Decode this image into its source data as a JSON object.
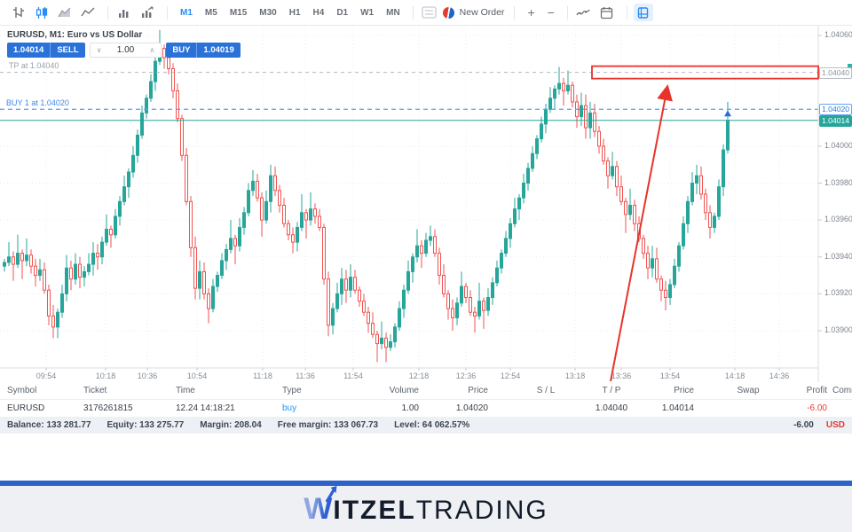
{
  "toolbar": {
    "chart_type_icons": [
      "bars-chart-icon",
      "candlestick-chart-icon",
      "area-chart-icon",
      "line-chart-icon"
    ],
    "volume_icons": [
      "volume-bars-icon",
      "tick-volume-icon"
    ],
    "timeframes": [
      "M1",
      "M5",
      "M15",
      "M30",
      "H1",
      "H4",
      "D1",
      "W1",
      "MN"
    ],
    "active_timeframe": "M1",
    "new_order_label": "New Order",
    "zoom_in": "+",
    "zoom_out": "−"
  },
  "chart": {
    "title": "EURUSD, M1: Euro vs US Dollar",
    "widget": {
      "sell_price": "1.04014",
      "sell_label": "SELL",
      "volume": "1.00",
      "buy_label": "BUY",
      "buy_price": "1.04019"
    },
    "tp_line": {
      "label": "TP at 1.04040",
      "price": 1.0404
    },
    "buy_line": {
      "label": "BUY 1 at 1.04020",
      "price": 1.0402
    },
    "current_price": 1.04014,
    "colors": {
      "bull": "#26a69a",
      "bear": "#ef5350",
      "blue_line": "#5b9cf6",
      "gray_line": "#b2b6bd",
      "annotation_red": "#e8332a",
      "buy_marker_blue": "#2f6bd8"
    }
  },
  "chart_data": {
    "type": "candlestick",
    "symbol": "EURUSD",
    "timeframe": "M1",
    "title": "EURUSD, M1: Euro vs US Dollar",
    "y_axis_ticks": [
      1.0406,
      1.04,
      1.0398,
      1.0396,
      1.0394,
      1.0392,
      1.039
    ],
    "y_range": [
      1.0388,
      1.0406
    ],
    "x_labels": [
      {
        "t": "09:54",
        "x": 52
      },
      {
        "t": "10:18",
        "x": 119
      },
      {
        "t": "10:36",
        "x": 166
      },
      {
        "t": "10:54",
        "x": 222
      },
      {
        "t": "11:18",
        "x": 296
      },
      {
        "t": "11:36",
        "x": 344
      },
      {
        "t": "11:54",
        "x": 398
      },
      {
        "t": "12:18",
        "x": 472
      },
      {
        "t": "12:36",
        "x": 525
      },
      {
        "t": "12:54",
        "x": 575
      },
      {
        "t": "13:18",
        "x": 648
      },
      {
        "t": "13:36",
        "x": 700
      },
      {
        "t": "13:54",
        "x": 755
      },
      {
        "t": "14:18",
        "x": 828
      },
      {
        "t": "14:36",
        "x": 878
      }
    ],
    "grid": true,
    "first_open": 1.03935,
    "closes": [
      1.03937,
      1.0394,
      1.03936,
      1.03942,
      1.03938,
      1.03941,
      1.03935,
      1.0393,
      1.03933,
      1.03922,
      1.03908,
      1.03902,
      1.0391,
      1.0392,
      1.03934,
      1.03928,
      1.03936,
      1.03929,
      1.03932,
      1.03936,
      1.03942,
      1.0394,
      1.03948,
      1.03955,
      1.03952,
      1.03962,
      1.0397,
      1.03978,
      1.03986,
      1.03995,
      1.04006,
      1.04018,
      1.04026,
      1.04035,
      1.04046,
      1.04053,
      1.04048,
      1.04042,
      1.0403,
      1.04015,
      1.03995,
      1.0397,
      1.03945,
      1.03923,
      1.03932,
      1.0392,
      1.03912,
      1.03924,
      1.0393,
      1.03938,
      1.03944,
      1.0395,
      1.03946,
      1.03956,
      1.03964,
      1.03976,
      1.03981,
      1.03972,
      1.0396,
      1.0397,
      1.03984,
      1.03976,
      1.03968,
      1.03958,
      1.03952,
      1.03948,
      1.03956,
      1.03964,
      1.0396,
      1.03966,
      1.03962,
      1.03956,
      1.03928,
      1.03903,
      1.03912,
      1.0392,
      1.03928,
      1.03922,
      1.03929,
      1.03922,
      1.03916,
      1.0391,
      1.03904,
      1.03898,
      1.03893,
      1.03896,
      1.03891,
      1.03894,
      1.03902,
      1.03912,
      1.03922,
      1.03932,
      1.0394,
      1.03946,
      1.03942,
      1.03949,
      1.03951,
      1.03942,
      1.0393,
      1.0392,
      1.03912,
      1.03907,
      1.03915,
      1.03924,
      1.03918,
      1.0391,
      1.03908,
      1.03916,
      1.03911,
      1.03918,
      1.03926,
      1.03934,
      1.03942,
      1.0395,
      1.03958,
      1.03966,
      1.03972,
      1.0398,
      1.03988,
      1.03996,
      1.04004,
      1.04012,
      1.0402,
      1.04026,
      1.04031,
      1.04034,
      1.0403,
      1.04033,
      1.04024,
      1.04016,
      1.04022,
      1.0401,
      1.04018,
      1.04008,
      1.04,
      1.03992,
      1.03984,
      1.03989,
      1.03978,
      1.0397,
      1.03963,
      1.03968,
      1.03958,
      1.0395,
      1.03942,
      1.03934,
      1.03939,
      1.03928,
      1.03922,
      1.03918,
      1.03925,
      1.03935,
      1.03946,
      1.03958,
      1.0397,
      1.0398,
      1.03984,
      1.03974,
      1.03964,
      1.03956,
      1.03962,
      1.03978,
      1.03998,
      1.04014
    ]
  },
  "positions_table": {
    "columns": [
      {
        "key": "symbol",
        "label": "Symbol",
        "x": 8,
        "w": 86,
        "align": "left"
      },
      {
        "key": "ticket",
        "label": "Ticket",
        "x": 94,
        "w": 100,
        "align": "left"
      },
      {
        "key": "time",
        "label": "Time",
        "x": 198,
        "w": 110,
        "align": "left"
      },
      {
        "key": "type",
        "label": "Type",
        "x": 318,
        "w": 60,
        "align": "left"
      },
      {
        "key": "volume",
        "label": "Volume",
        "x": 410,
        "w": 62,
        "align": "right"
      },
      {
        "key": "price_open",
        "label": "Price",
        "x": 490,
        "w": 60,
        "align": "right"
      },
      {
        "key": "sl",
        "label": "S / L",
        "x": 585,
        "w": 60,
        "align": "center"
      },
      {
        "key": "tp",
        "label": "T / P",
        "x": 660,
        "w": 58,
        "align": "center"
      },
      {
        "key": "price_current",
        "label": "Price",
        "x": 730,
        "w": 52,
        "align": "right"
      },
      {
        "key": "swap",
        "label": "Swap",
        "x": 815,
        "w": 56,
        "align": "center"
      },
      {
        "key": "profit",
        "label": "Profit",
        "x": 880,
        "w": 52,
        "align": "right"
      },
      {
        "key": "comment",
        "label": "Comm",
        "x": 938,
        "w": 22,
        "align": "left"
      }
    ],
    "row": {
      "symbol": "EURUSD",
      "ticket": "3176261815",
      "time": "12.24 14:18:21",
      "type": "buy",
      "volume": "1.00",
      "price_open": "1.04020",
      "sl": "",
      "tp": "1.04040",
      "price_current": "1.04014",
      "swap": "",
      "profit": "-6.00",
      "comment": ""
    }
  },
  "account": {
    "items": [
      {
        "label": "Balance:",
        "value": "133 281.77"
      },
      {
        "label": "Equity:",
        "value": "133 275.77"
      },
      {
        "label": "Margin:",
        "value": "208.04"
      },
      {
        "label": "Free margin:",
        "value": "133 067.73"
      },
      {
        "label": "Level:",
        "value": "64 062.57%"
      }
    ],
    "profit": "-6.00",
    "currency": "USD"
  },
  "footer": {
    "brand_w": "W",
    "brand_bold": "ITZEL",
    "brand_light": "TRADING"
  }
}
